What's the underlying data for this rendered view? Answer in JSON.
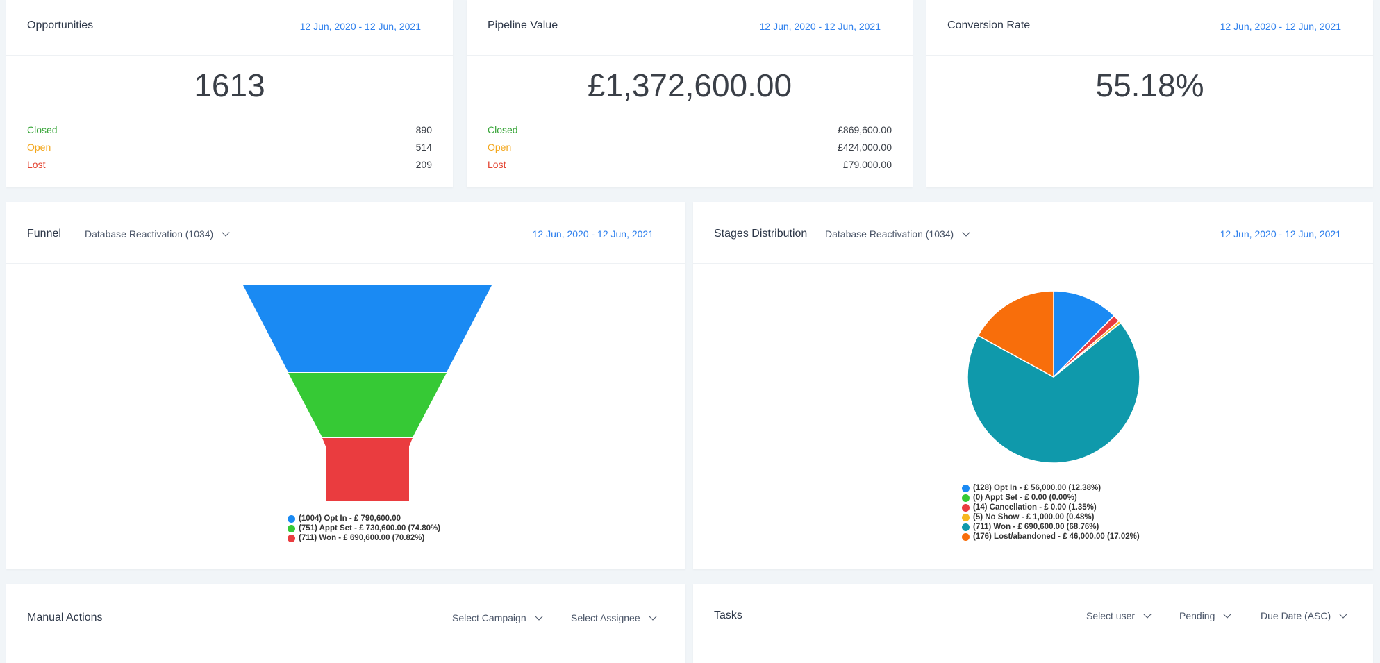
{
  "opportunities": {
    "title": "Opportunities",
    "date_range": "12 Jun, 2020 - 12 Jun, 2021",
    "total": "1613",
    "rows": [
      {
        "label": "Closed",
        "value": "890"
      },
      {
        "label": "Open",
        "value": "514"
      },
      {
        "label": "Lost",
        "value": "209"
      }
    ]
  },
  "pipeline": {
    "title": "Pipeline Value",
    "date_range": "12 Jun, 2020 - 12 Jun, 2021",
    "total": "£1,372,600.00",
    "rows": [
      {
        "label": "Closed",
        "value": "£869,600.00"
      },
      {
        "label": "Open",
        "value": "£424,000.00"
      },
      {
        "label": "Lost",
        "value": "£79,000.00"
      }
    ]
  },
  "conversion": {
    "title": "Conversion Rate",
    "date_range": "12 Jun, 2020 - 12 Jun, 2021",
    "total": "55.18%"
  },
  "funnel": {
    "title": "Funnel",
    "pipeline_select": "Database Reactivation (1034)",
    "date_range": "12 Jun, 2020 - 12 Jun, 2021"
  },
  "stages": {
    "title": "Stages Distribution",
    "pipeline_select": "Database Reactivation (1034)",
    "date_range": "12 Jun, 2020 - 12 Jun, 2021"
  },
  "manual_actions": {
    "title": "Manual Actions",
    "campaign_select": "Select Campaign",
    "assignee_select": "Select Assignee"
  },
  "tasks": {
    "title": "Tasks",
    "user_select": "Select user",
    "status_select": "Pending",
    "sort_select": "Due Date (ASC)"
  },
  "chart_data": [
    {
      "type": "funnel",
      "categories": [
        "Opt In",
        "Appt Set",
        "Won"
      ],
      "values": [
        1004,
        751,
        711
      ],
      "colors": [
        "#1a8af3",
        "#36c935",
        "#ea3c3f"
      ],
      "legend": [
        "(1004) Opt In - £ 790,600.00",
        "(751) Appt Set - £ 730,600.00 (74.80%)",
        "(711) Won - £ 690,600.00 (70.82%)"
      ],
      "legend_position": "bottom"
    },
    {
      "type": "pie",
      "categories": [
        "Opt In",
        "Appt Set",
        "Cancellation",
        "No Show",
        "Won",
        "Lost/abandoned"
      ],
      "values": [
        12.38,
        0.0,
        1.35,
        0.48,
        68.76,
        17.02
      ],
      "colors": [
        "#1a8af3",
        "#36c935",
        "#ea3c3f",
        "#f7b820",
        "#0f99ab",
        "#f86e0b"
      ],
      "legend": [
        "(128) Opt In - £ 56,000.00 (12.38%)",
        "(0) Appt Set - £ 0.00 (0.00%)",
        "(14) Cancellation - £ 0.00 (1.35%)",
        "(5) No Show - £ 1,000.00 (0.48%)",
        "(711) Won - £ 690,600.00 (68.76%)",
        "(176) Lost/abandoned - £ 46,000.00 (17.02%)"
      ],
      "legend_position": "bottom"
    }
  ]
}
